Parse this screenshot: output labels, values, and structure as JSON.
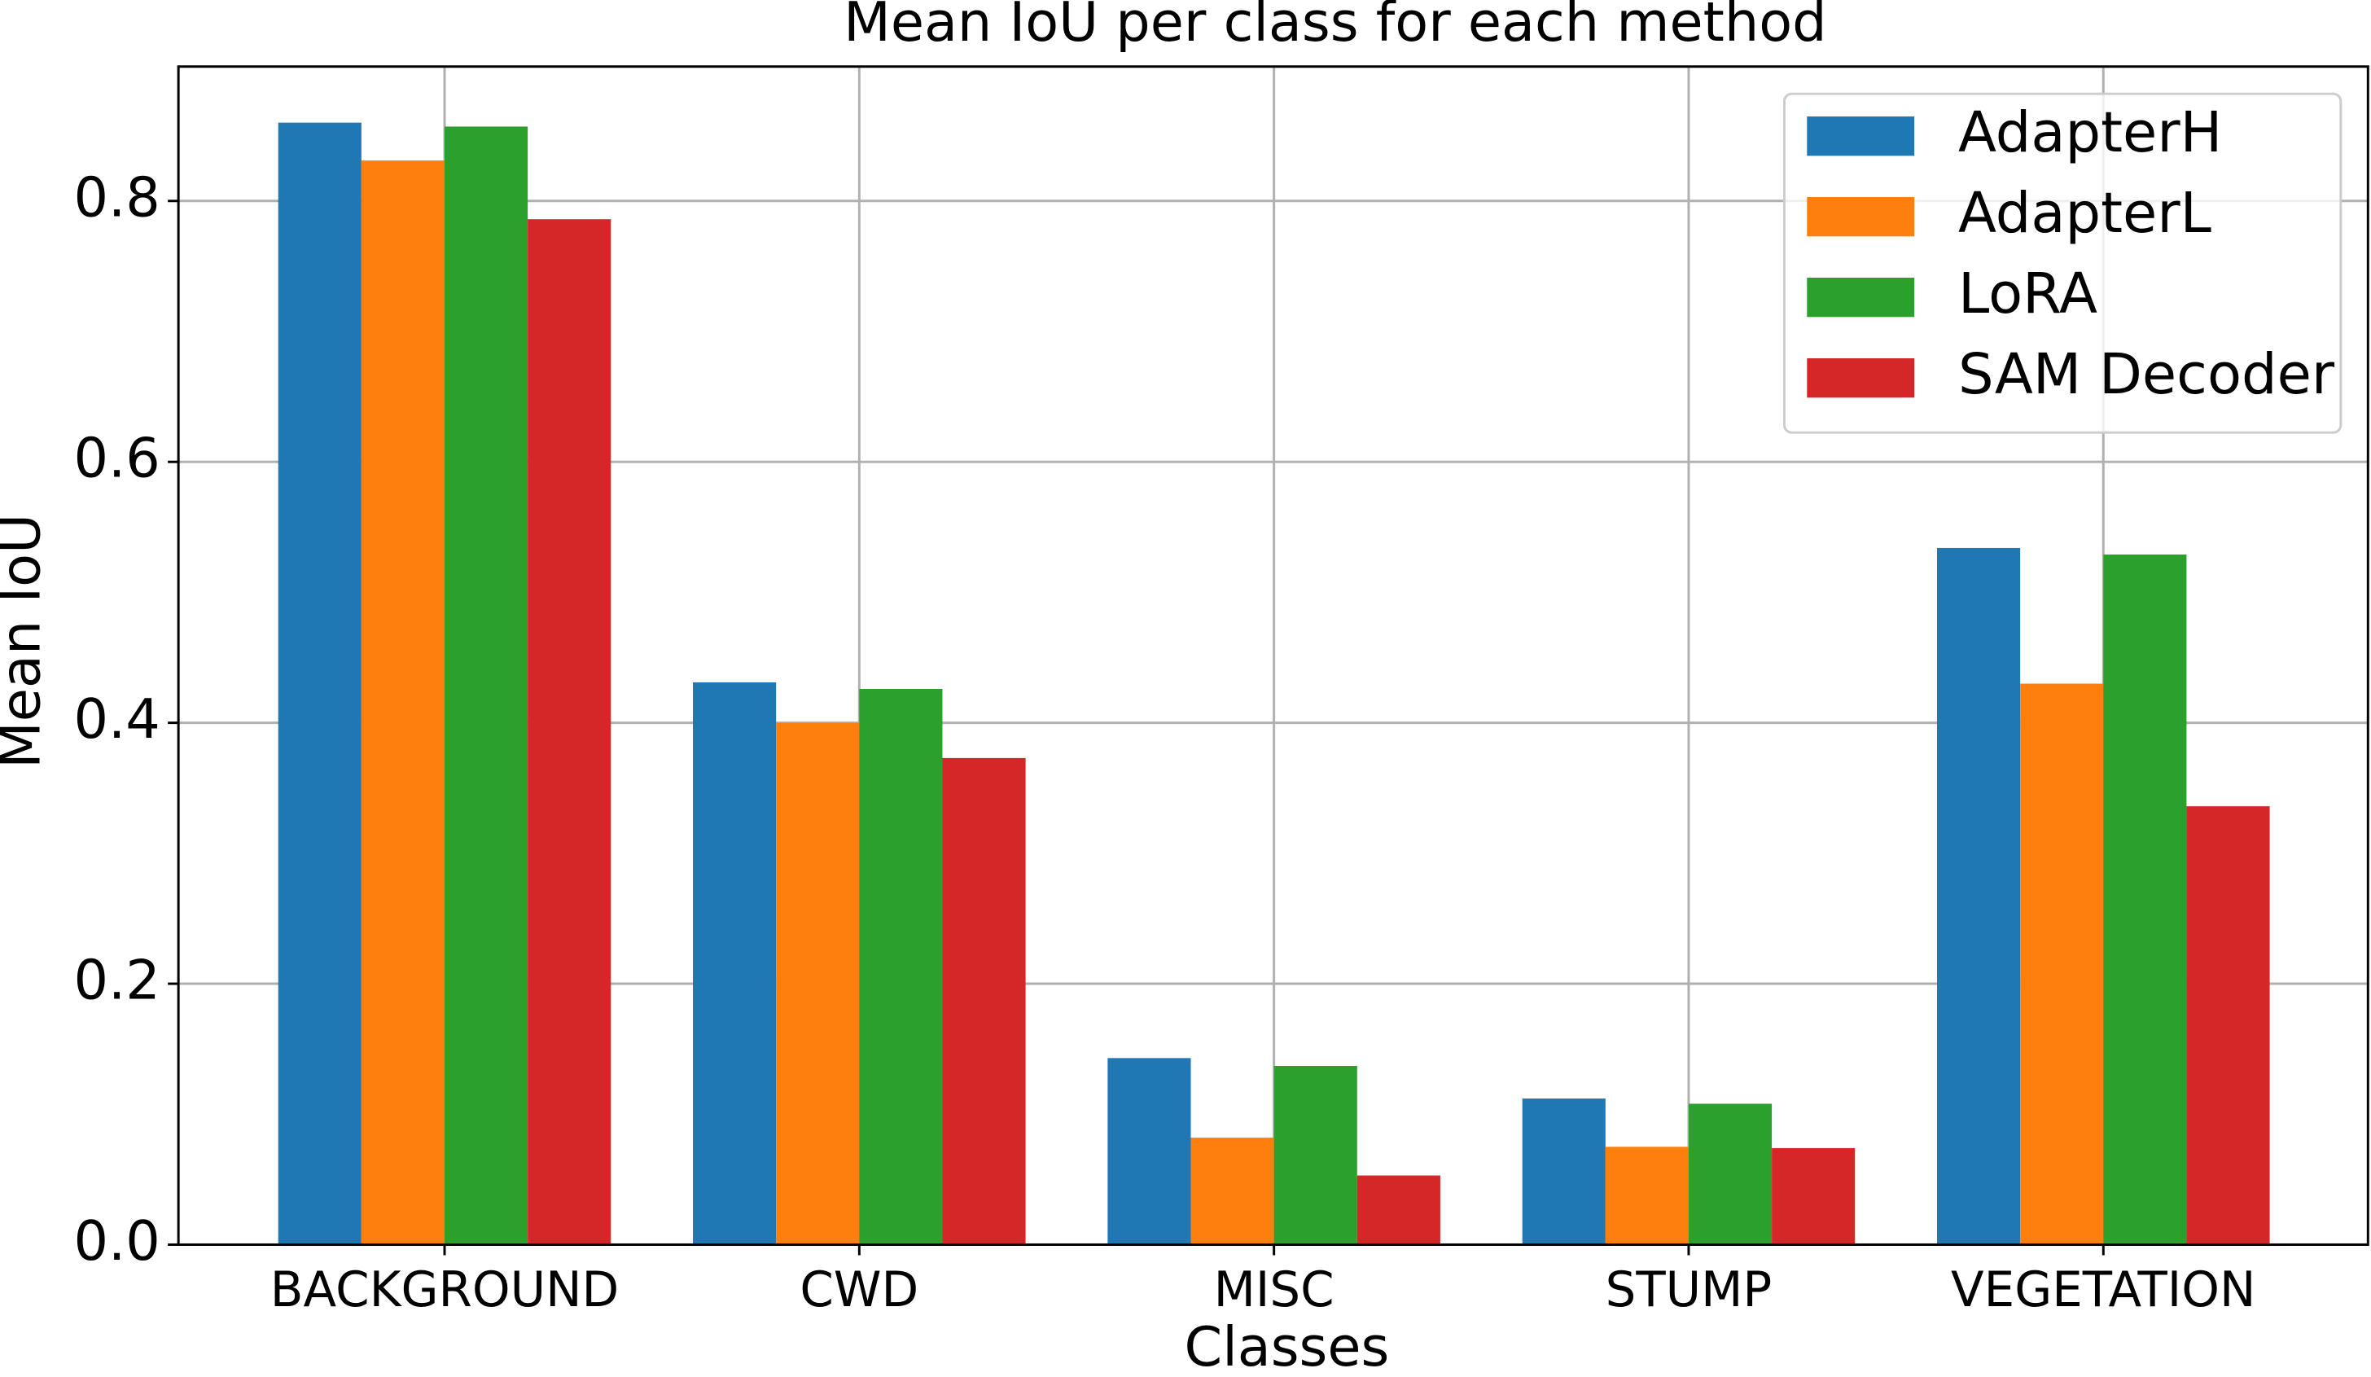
{
  "chart_data": {
    "type": "bar",
    "title": "Mean IoU per class for each method",
    "x_label": "Classes",
    "y_label": "Mean IoU",
    "categories": [
      "BACKGROUND",
      "CWD",
      "MISC",
      "STUMP",
      "VEGETATION"
    ],
    "series": [
      {
        "name": "AdapterH",
        "color": "#1f77b4",
        "values": [
          0.86,
          0.431,
          0.143,
          0.112,
          0.534
        ]
      },
      {
        "name": "AdapterL",
        "color": "#ff7f0e",
        "values": [
          0.831,
          0.4,
          0.082,
          0.075,
          0.43
        ]
      },
      {
        "name": "LoRA",
        "color": "#2ca02c",
        "values": [
          0.857,
          0.426,
          0.137,
          0.108,
          0.529
        ]
      },
      {
        "name": "SAM Decoder",
        "color": "#d62728",
        "values": [
          0.786,
          0.373,
          0.053,
          0.074,
          0.336
        ]
      }
    ],
    "ylim": [
      0,
      0.903
    ],
    "yticks": [
      {
        "value": 0,
        "label": "0.0"
      },
      0.2,
      0.4,
      0.6,
      0.8
    ],
    "grid": true,
    "legend": "upper right"
  }
}
